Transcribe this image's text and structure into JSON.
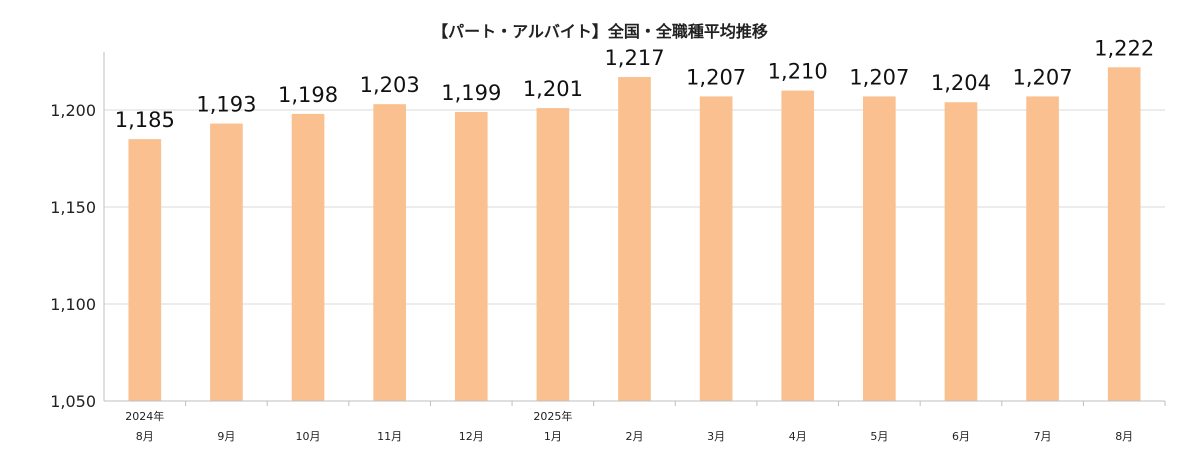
{
  "chart_data": {
    "type": "bar",
    "title": "【パート・アルバイト】全国・全職種平均推移",
    "xlabel": "",
    "ylabel": "",
    "ylim": [
      1050,
      1230
    ],
    "yticks": [
      "1,050",
      "1,100",
      "1,150",
      "1,200"
    ],
    "ytick_values": [
      1050,
      1100,
      1150,
      1200
    ],
    "categories": [
      {
        "year": "2024年",
        "month": "8月"
      },
      {
        "year": "",
        "month": "9月"
      },
      {
        "year": "",
        "month": "10月"
      },
      {
        "year": "",
        "month": "11月"
      },
      {
        "year": "",
        "month": "12月"
      },
      {
        "year": "2025年",
        "month": "1月"
      },
      {
        "year": "",
        "month": "2月"
      },
      {
        "year": "",
        "month": "3月"
      },
      {
        "year": "",
        "month": "4月"
      },
      {
        "year": "",
        "month": "5月"
      },
      {
        "year": "",
        "month": "6月"
      },
      {
        "year": "",
        "month": "7月"
      },
      {
        "year": "",
        "month": "8月"
      }
    ],
    "values": [
      1185,
      1193,
      1198,
      1203,
      1199,
      1201,
      1217,
      1207,
      1210,
      1207,
      1204,
      1207,
      1222
    ],
    "value_labels": [
      "1,185",
      "1,193",
      "1,198",
      "1,203",
      "1,199",
      "1,201",
      "1,217",
      "1,207",
      "1,210",
      "1,207",
      "1,204",
      "1,207",
      "1,222"
    ],
    "grid": true,
    "legend": "none",
    "colors": {
      "bar": "#fac090",
      "grid": "#d9d9d9",
      "axis": "#bfbfbf"
    }
  }
}
